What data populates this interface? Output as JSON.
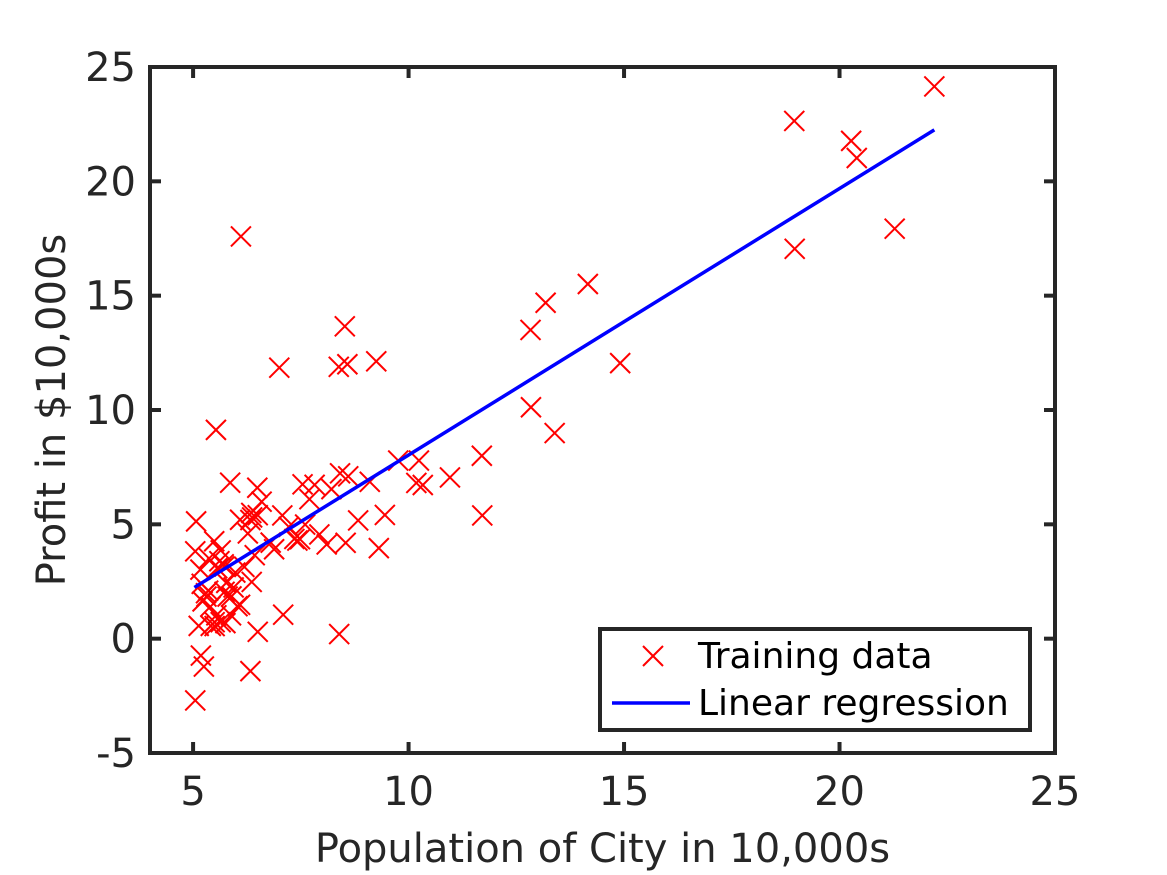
{
  "chart_data": {
    "type": "scatter",
    "title": "",
    "xlabel": "Population of City in 10,000s",
    "ylabel": "Profit in $10,000s",
    "xlim": [
      4,
      25
    ],
    "ylim": [
      -5,
      25
    ],
    "xticks": [
      5,
      10,
      15,
      20,
      25
    ],
    "yticks": [
      -5,
      0,
      5,
      10,
      15,
      20,
      25
    ],
    "xtick_labels": [
      "5",
      "10",
      "15",
      "20",
      "25"
    ],
    "ytick_labels": [
      "-5",
      "0",
      "5",
      "10",
      "15",
      "20",
      "25"
    ],
    "grid": false,
    "legend_position": "bottom-right",
    "series": [
      {
        "name": "Training data",
        "kind": "scatter",
        "marker": "x",
        "color": "#ff0000",
        "points": [
          [
            6.11,
            17.59
          ],
          [
            5.53,
            9.13
          ],
          [
            8.52,
            13.66
          ],
          [
            7.0,
            11.85
          ],
          [
            5.86,
            6.82
          ],
          [
            8.38,
            11.89
          ],
          [
            7.48,
            4.35
          ],
          [
            8.58,
            12.0
          ],
          [
            6.49,
            6.6
          ],
          [
            5.05,
            3.82
          ],
          [
            5.71,
            3.25
          ],
          [
            14.16,
            15.51
          ],
          [
            5.73,
            3.16
          ],
          [
            8.41,
            7.23
          ],
          [
            5.64,
            0.72
          ],
          [
            5.37,
            3.51
          ],
          [
            6.37,
            5.3
          ],
          [
            5.13,
            0.56
          ],
          [
            6.43,
            3.65
          ],
          [
            7.07,
            5.39
          ],
          [
            6.19,
            3.14
          ],
          [
            20.27,
            21.77
          ],
          [
            5.49,
            4.26
          ],
          [
            6.33,
            5.19
          ],
          [
            5.56,
            3.08
          ],
          [
            18.95,
            22.64
          ],
          [
            12.83,
            13.5
          ],
          [
            10.96,
            7.05
          ],
          [
            13.18,
            14.69
          ],
          [
            22.2,
            24.15
          ],
          [
            5.25,
            -1.22
          ],
          [
            6.59,
            5.99
          ],
          [
            9.25,
            12.13
          ],
          [
            5.89,
            1.85
          ],
          [
            8.21,
            6.54
          ],
          [
            7.93,
            4.56
          ],
          [
            8.1,
            4.12
          ],
          [
            5.61,
            3.39
          ],
          [
            12.84,
            10.12
          ],
          [
            6.35,
            5.5
          ],
          [
            5.41,
            0.56
          ],
          [
            6.88,
            3.91
          ],
          [
            11.71,
            5.39
          ],
          [
            5.77,
            2.44
          ],
          [
            7.82,
            6.73
          ],
          [
            7.09,
            1.05
          ],
          [
            5.07,
            5.13
          ],
          [
            5.8,
            1.84
          ],
          [
            11.7,
            8.0
          ],
          [
            5.54,
            1.02
          ],
          [
            7.54,
            6.75
          ],
          [
            5.31,
            1.84
          ],
          [
            7.42,
            4.29
          ],
          [
            7.6,
            4.99
          ],
          [
            6.03,
            1.42
          ],
          [
            6.33,
            -1.42
          ],
          [
            6.36,
            2.48
          ],
          [
            6.27,
            4.6
          ],
          [
            5.64,
            3.86
          ],
          [
            9.31,
            3.96
          ],
          [
            9.45,
            5.41
          ],
          [
            8.83,
            5.17
          ],
          [
            5.18,
            -0.74
          ],
          [
            21.28,
            17.93
          ],
          [
            14.91,
            12.05
          ],
          [
            18.96,
            17.05
          ],
          [
            7.22,
            4.89
          ],
          [
            5.3,
            1.99
          ],
          [
            6.09,
            1.48
          ],
          [
            5.75,
            0.68
          ],
          [
            8.54,
            4.19
          ],
          [
            13.39,
            8.99
          ],
          [
            5.5,
            0.55
          ],
          [
            5.98,
            2.89
          ],
          [
            5.17,
            3.02
          ],
          [
            8.39,
            0.2
          ],
          [
            9.76,
            7.79
          ],
          [
            6.5,
            0.3
          ],
          [
            5.22,
            1.63
          ],
          [
            20.4,
            21.02
          ],
          [
            5.5,
            0.72
          ],
          [
            5.05,
            -2.7
          ],
          [
            5.88,
            1.02
          ],
          [
            10.24,
            7.79
          ],
          [
            5.73,
            2.05
          ],
          [
            5.94,
            2.24
          ],
          [
            10.18,
            6.81
          ],
          [
            6.09,
            5.2
          ],
          [
            6.8,
            4.2
          ],
          [
            7.35,
            4.36
          ],
          [
            10.33,
            6.72
          ],
          [
            9.1,
            6.86
          ],
          [
            5.2,
            2.4
          ],
          [
            7.7,
            6.1
          ],
          [
            6.5,
            5.4
          ],
          [
            8.6,
            7.1
          ],
          [
            5.4,
            1.4
          ],
          [
            5.35,
            2.1
          ]
        ]
      },
      {
        "name": "Linear regression",
        "kind": "line",
        "color": "#0000ff",
        "x": [
          5.03,
          22.2
        ],
        "y": [
          2.24,
          22.25
        ]
      }
    ]
  }
}
